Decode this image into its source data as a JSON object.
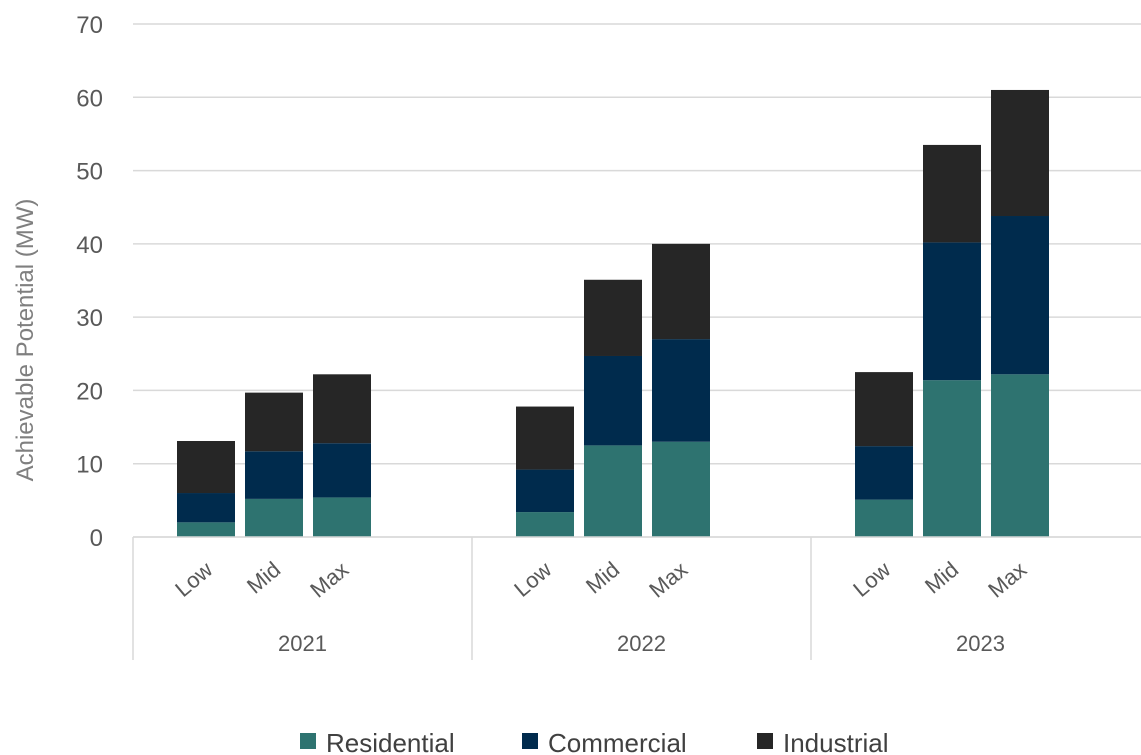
{
  "chart_data": {
    "type": "bar",
    "stacked": true,
    "ylabel": "Achievable Potential (MW)",
    "ylim": [
      0,
      70
    ],
    "yticks": [
      0,
      10,
      20,
      30,
      40,
      50,
      60,
      70
    ],
    "grid": true,
    "legend_position": "bottom",
    "groups": [
      "2021",
      "2022",
      "2023"
    ],
    "categories": [
      "Low",
      "Mid",
      "Max"
    ],
    "series": [
      {
        "name": "Residential",
        "color": "#2e7370",
        "values": [
          [
            2.0,
            5.2,
            5.4
          ],
          [
            3.4,
            12.5,
            13.0
          ],
          [
            5.1,
            21.4,
            22.2
          ]
        ]
      },
      {
        "name": "Commercial",
        "color": "#002b4d",
        "values": [
          [
            4.0,
            6.5,
            7.4
          ],
          [
            5.8,
            12.2,
            14.0
          ],
          [
            7.3,
            18.8,
            21.6
          ]
        ]
      },
      {
        "name": "Industrial",
        "color": "#262626",
        "values": [
          [
            7.1,
            8.0,
            9.4
          ],
          [
            8.6,
            10.4,
            13.0
          ],
          [
            10.1,
            13.3,
            17.2
          ]
        ]
      }
    ]
  }
}
